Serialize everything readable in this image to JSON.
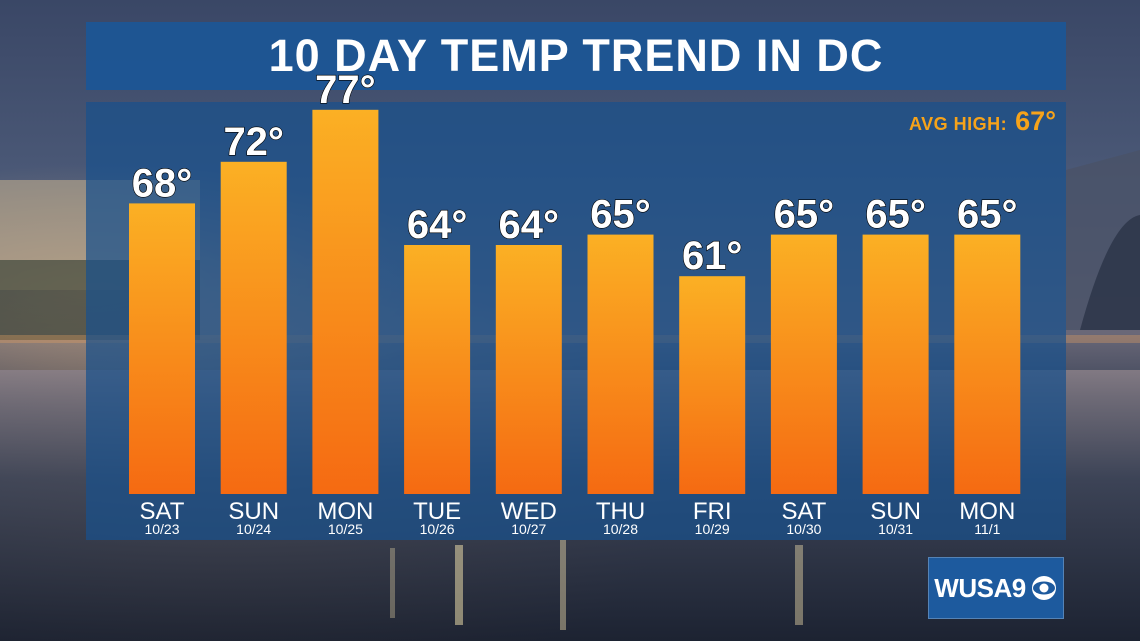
{
  "title": "10 DAY TEMP TREND IN DC",
  "avg_high": {
    "label": "AVG HIGH:",
    "value": "67°"
  },
  "logo": {
    "text": "WUSA9",
    "icon": "cbs-eye-icon"
  },
  "colors": {
    "title_bg": "#1c5696",
    "panel_bg": "#19508c",
    "bar_top": "#fbb024",
    "bar_bottom": "#f56a12",
    "avg_high": "#f6a31a",
    "text": "#ffffff"
  },
  "chart_data": {
    "type": "bar",
    "title": "10 DAY TEMP TREND IN DC",
    "categories": [
      "SAT",
      "SUN",
      "MON",
      "TUE",
      "WED",
      "THU",
      "FRI",
      "SAT",
      "SUN",
      "MON"
    ],
    "dates": [
      "10/23",
      "10/24",
      "10/25",
      "10/26",
      "10/27",
      "10/28",
      "10/29",
      "10/30",
      "10/31",
      "11/1"
    ],
    "values": [
      68,
      72,
      77,
      64,
      64,
      65,
      61,
      65,
      65,
      65
    ],
    "value_labels": [
      "68°",
      "72°",
      "77°",
      "64°",
      "64°",
      "65°",
      "61°",
      "65°",
      "65°",
      "65°"
    ],
    "unit": "°",
    "grid": false,
    "legend": "none"
  }
}
